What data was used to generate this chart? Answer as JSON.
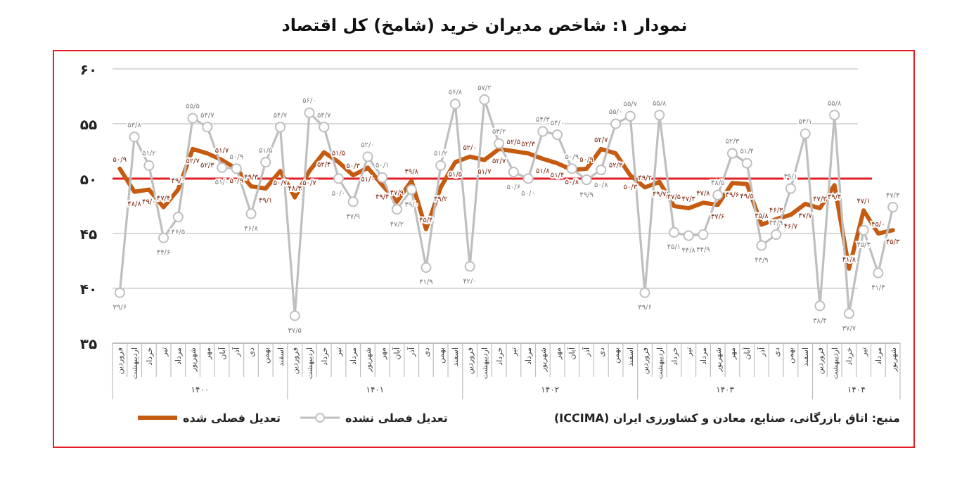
{
  "chart_data": {
    "type": "line",
    "title": "نمودار ۱: شاخص مدیران خرید (شامخ) کل اقتصاد",
    "categories": [
      "فروردین",
      "اردیبهشت",
      "خرداد",
      "تیر",
      "مرداد",
      "شهریور",
      "مهر",
      "آبان",
      "آذر",
      "دی",
      "بهمن",
      "اسفند",
      "فروردین",
      "اردیبهشت",
      "خرداد",
      "تیر",
      "مرداد",
      "شهریور",
      "مهر",
      "آبان",
      "آذر",
      "دی",
      "بهمن",
      "اسفند",
      "فروردین",
      "اردیبهشت",
      "خرداد",
      "تیر",
      "مرداد",
      "شهریور",
      "مهر",
      "آبان",
      "آذر",
      "دی",
      "بهمن",
      "اسفند",
      "فروردین",
      "اردیبهشت",
      "خرداد",
      "تیر",
      "مرداد",
      "شهریور",
      "مهر",
      "آبان",
      "آذر",
      "دی",
      "بهمن",
      "اسفند",
      "فروردین",
      "اردیبهشت",
      "خرداد",
      "تیر",
      "مرداد",
      "شهریور"
    ],
    "series": [
      {
        "name": "تعدیل فصلی شده",
        "color": "#c55a11",
        "marker": "none",
        "values": [
          50.9,
          48.8,
          49.0,
          47.4,
          49.0,
          52.7,
          52.3,
          51.7,
          50.9,
          49.3,
          49.1,
          50.7,
          48.3,
          50.7,
          52.4,
          51.5,
          50.3,
          51.0,
          49.4,
          47.9,
          49.8,
          45.4,
          49.2,
          51.5,
          52.0,
          51.7,
          52.7,
          52.5,
          52.3,
          51.8,
          51.4,
          50.8,
          50.9,
          52.7,
          52.3,
          50.3,
          49.2,
          49.7,
          47.5,
          47.3,
          47.8,
          47.6,
          49.6,
          49.5,
          45.8,
          46.3,
          46.7,
          47.7,
          47.3,
          49.4,
          41.8,
          47.1,
          45.0,
          45.3
        ],
        "value_labels": [
          "۵۰/۹",
          "۴۸/۸",
          "۴۹/۰",
          "۴۷/۴",
          "۴۹/۰",
          "۵۲/۷",
          "۵۲/۳",
          "۵۱/۷",
          "۵۰/۹",
          "۴۹/۳",
          "۴۹/۱",
          "۵۰/۷",
          "۴۸/۳",
          "۵۰/۷",
          "۵۲/۴",
          "۵۱/۵",
          "۵۰/۳",
          "۵۱/۰",
          "۴۹/۴",
          "۴۷/۹",
          "۴۹/۸",
          "۴۵/۴",
          "۴۹/۲",
          "۵۱/۵",
          "۵۲/۰",
          "۵۱/۷",
          "۵۲/۷",
          "۵۲/۵",
          "۵۲/۳",
          "۵۱/۸",
          "۵۱/۴",
          "۵۰/۸",
          "۵۰/۹",
          "۵۲/۷",
          "۵۲/۳",
          "۵۰/۳",
          "۴۹/۲",
          "۴۹/۷",
          "۴۷/۵",
          "۴۷/۳",
          "۴۷/۸",
          "۴۷/۶",
          "۴۹/۶",
          "۴۹/۵",
          "۴۵/۸",
          "۴۶/۳",
          "۴۶/۷",
          "۴۷/۷",
          "۴۷/۳",
          "۴۹/۴",
          "۴۱/۸",
          "۴۷/۱",
          "۴۵/۰",
          "۴۵/۳"
        ]
      },
      {
        "name": "تعدیل فصلی نشده",
        "color": "#bfbfbf",
        "marker": "circle",
        "values": [
          39.6,
          53.8,
          51.2,
          44.6,
          46.5,
          55.5,
          54.7,
          51.0,
          50.9,
          46.8,
          51.5,
          54.7,
          37.5,
          56.0,
          54.7,
          50.0,
          47.9,
          52.0,
          50.1,
          47.2,
          49.0,
          41.9,
          51.2,
          56.8,
          42.0,
          57.2,
          53.2,
          50.6,
          50.0,
          54.3,
          54.0,
          50.9,
          49.9,
          50.8,
          55.0,
          55.7,
          39.6,
          55.8,
          45.1,
          44.8,
          44.9,
          48.5,
          52.3,
          51.4,
          43.9,
          44.9,
          49.1,
          54.1,
          38.4,
          55.8,
          37.7,
          45.3,
          41.4,
          47.4
        ],
        "value_labels": [
          "۳۹/۶",
          "۵۳/۸",
          "۵۱/۲",
          "۴۴/۶",
          "۴۶/۵",
          "۵۵/۵",
          "۵۴/۷",
          "۵۱/۰",
          "۵۰/۹",
          "۴۶/۸",
          "۵۱/۵",
          "۵۴/۷",
          "۳۷/۵",
          "۵۶/۰",
          "۵۴/۷",
          "۵۰/۰",
          "۴۷/۹",
          "۵۲/۰",
          "۵۰/۱",
          "۴۷/۲",
          "۴۹/۰",
          "۴۱/۹",
          "۵۱/۲",
          "۵۶/۸",
          "۴۲/۰",
          "۵۷/۲",
          "۵۳/۲",
          "۵۰/۶",
          "۵۰/۰",
          "۵۴/۳",
          "۵۴/۰",
          "۵۰/۹",
          "۴۹/۹",
          "۵۰/۸",
          "۵۵/۰",
          "۵۵/۷",
          "۳۹/۶",
          "۵۵/۸",
          "۴۵/۱",
          "۴۴/۸",
          "۴۴/۹",
          "۴۸/۵",
          "۵۲/۳",
          "۵۱/۴",
          "۴۳/۹",
          "۴۴/۹",
          "۴۹/۱",
          "۵۴/۱",
          "۳۸/۴",
          "۵۵/۸",
          "۳۷/۷",
          "۴۵/۳",
          "۴۱/۴",
          "۴۷/۴"
        ]
      }
    ],
    "ylim": [
      35,
      60
    ],
    "yticks": [
      {
        "value": 35,
        "label": "۳۵"
      },
      {
        "value": 40,
        "label": "۴۰"
      },
      {
        "value": 45,
        "label": "۴۵"
      },
      {
        "value": 50,
        "label": "۵۰"
      },
      {
        "value": 55,
        "label": "۵۵"
      },
      {
        "value": 60,
        "label": "۶۰"
      }
    ],
    "grid": "y",
    "ref_lines": [
      {
        "axis": "y",
        "value": 50,
        "color": "#e31e24"
      }
    ],
    "legend": "bottom left",
    "annotations": [
      "۱۴۰۰",
      "۱۴۰۱",
      "۱۴۰۲",
      "۱۴۰۳",
      "۱۴۰۴",
      "منبع: اتاق بازرگانی، صنایع، معادن و کشاورزی ایران (ICCIMA)"
    ]
  }
}
